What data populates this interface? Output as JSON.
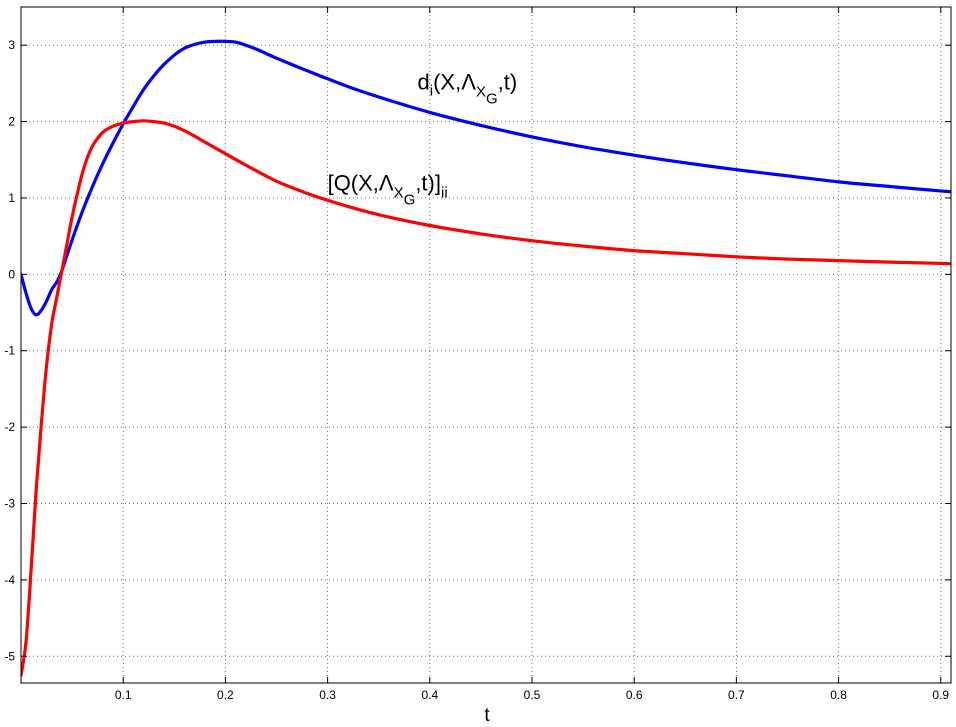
{
  "chart_data": {
    "type": "line",
    "xlabel": "t",
    "ylabel": "",
    "title": "",
    "xlim": [
      0,
      0.91
    ],
    "ylim": [
      -5.35,
      3.5
    ],
    "grid": true,
    "xticks": [
      0.1,
      0.2,
      0.3,
      0.4,
      0.5,
      0.6,
      0.7,
      0.8,
      0.9
    ],
    "xtick_labels": [
      "0.1",
      "0.2",
      "0.3",
      "0.4",
      "0.5",
      "0.6",
      "0.7",
      "0.8",
      "0.9"
    ],
    "yticks": [
      -5,
      -4,
      -3,
      -2,
      -1,
      0,
      1,
      2,
      3
    ],
    "ytick_labels": [
      "-5",
      "-4",
      "-3",
      "-2",
      "-1",
      "0",
      "1",
      "2",
      "3"
    ],
    "series": [
      {
        "color": "#0000ff",
        "x": [
          0.0,
          0.005,
          0.01,
          0.015,
          0.02,
          0.025,
          0.03,
          0.035,
          0.04,
          0.05,
          0.06,
          0.07,
          0.08,
          0.09,
          0.1,
          0.11,
          0.12,
          0.13,
          0.14,
          0.15,
          0.16,
          0.17,
          0.18,
          0.19,
          0.2,
          0.21,
          0.22,
          0.23,
          0.24,
          0.25,
          0.27,
          0.3,
          0.33,
          0.36,
          0.4,
          0.45,
          0.5,
          0.55,
          0.6,
          0.65,
          0.7,
          0.75,
          0.8,
          0.85,
          0.91
        ],
        "y": [
          0.0,
          -0.25,
          -0.45,
          -0.53,
          -0.47,
          -0.35,
          -0.2,
          -0.1,
          0.05,
          0.45,
          0.82,
          1.15,
          1.45,
          1.72,
          1.97,
          2.2,
          2.42,
          2.6,
          2.75,
          2.87,
          2.96,
          3.01,
          3.04,
          3.05,
          3.05,
          3.04,
          3.0,
          2.95,
          2.89,
          2.83,
          2.72,
          2.56,
          2.41,
          2.28,
          2.12,
          1.95,
          1.8,
          1.67,
          1.56,
          1.46,
          1.37,
          1.29,
          1.21,
          1.15,
          1.08
        ]
      },
      {
        "color": "#ff0000",
        "x": [
          0.0,
          0.005,
          0.01,
          0.015,
          0.02,
          0.025,
          0.03,
          0.035,
          0.04,
          0.045,
          0.05,
          0.055,
          0.06,
          0.065,
          0.07,
          0.075,
          0.08,
          0.09,
          0.1,
          0.11,
          0.12,
          0.13,
          0.14,
          0.15,
          0.16,
          0.17,
          0.18,
          0.2,
          0.22,
          0.25,
          0.28,
          0.3,
          0.33,
          0.36,
          0.4,
          0.45,
          0.5,
          0.55,
          0.6,
          0.65,
          0.7,
          0.75,
          0.8,
          0.85,
          0.91
        ],
        "y": [
          -5.25,
          -4.8,
          -3.85,
          -2.8,
          -1.95,
          -1.2,
          -0.65,
          -0.3,
          0.05,
          0.4,
          0.75,
          1.05,
          1.32,
          1.53,
          1.68,
          1.78,
          1.86,
          1.94,
          1.98,
          2.0,
          2.01,
          2.0,
          1.98,
          1.94,
          1.88,
          1.81,
          1.73,
          1.58,
          1.43,
          1.22,
          1.06,
          0.97,
          0.85,
          0.75,
          0.64,
          0.53,
          0.44,
          0.37,
          0.31,
          0.27,
          0.23,
          0.2,
          0.18,
          0.16,
          0.14
        ]
      }
    ],
    "annotations": [
      {
        "id": "d",
        "x": 0.388,
        "y": 2.42,
        "color": "#000000"
      },
      {
        "id": "q",
        "x": 0.3,
        "y": 1.1,
        "color": "#000000"
      }
    ]
  },
  "annotations_text": {
    "d_main": "d",
    "d_sub": "i",
    "d_paren": "(X,",
    "d_lambda": "Λ",
    "d_lambda_sub": "X",
    "d_lambda_subsub": "G",
    "d_tail": ",t)",
    "q_open": "[Q(X,",
    "q_lambda": "Λ",
    "q_lambda_sub": "X",
    "q_lambda_subsub": "G",
    "q_tail": ",t)]",
    "q_sub": "ii"
  }
}
